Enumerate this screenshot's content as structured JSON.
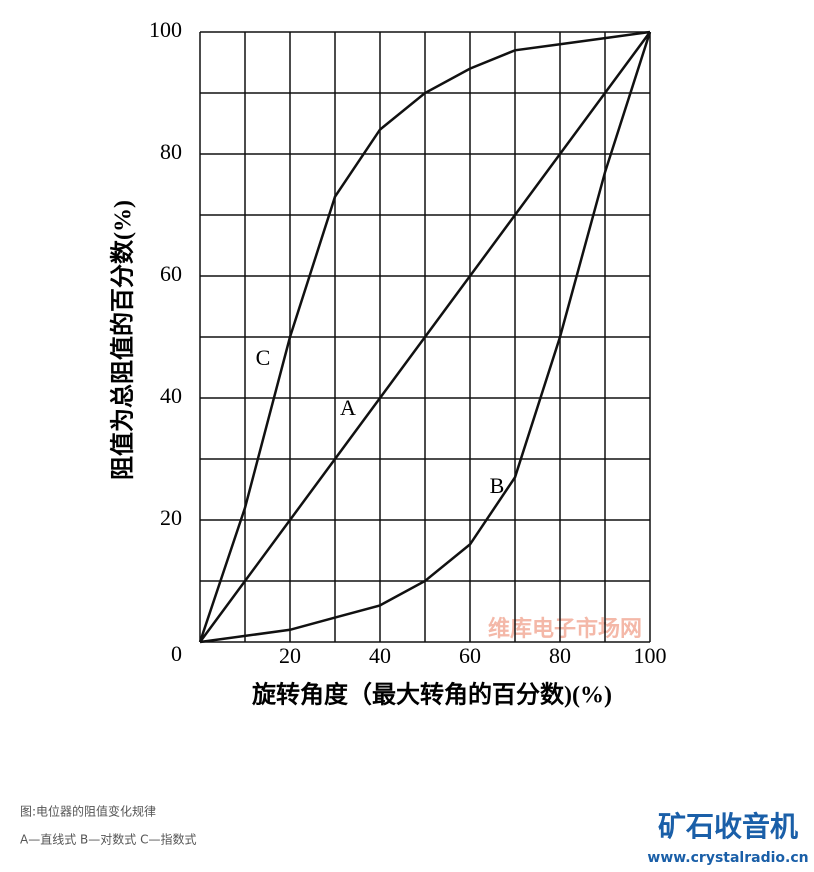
{
  "chart_data": {
    "type": "line",
    "x_label": "旋转角度（最大转角的百分数)(%)",
    "y_label": "阻值为总阻值的百分数(%)",
    "xlim": [
      0,
      100
    ],
    "ylim": [
      0,
      100
    ],
    "xticks": [
      20,
      40,
      60,
      80,
      100
    ],
    "yticks": [
      0,
      20,
      40,
      60,
      80,
      100
    ],
    "xgrid": [
      0,
      10,
      20,
      30,
      40,
      50,
      60,
      70,
      80,
      90,
      100
    ],
    "ygrid": [
      0,
      10,
      20,
      30,
      40,
      50,
      60,
      70,
      80,
      90,
      100
    ],
    "x": [
      0,
      10,
      20,
      30,
      40,
      50,
      60,
      70,
      80,
      90,
      100
    ],
    "series": [
      {
        "name": "A",
        "color": "#111111",
        "values": [
          0,
          10,
          20,
          30,
          40,
          50,
          60,
          70,
          80,
          90,
          100
        ]
      },
      {
        "name": "B",
        "color": "#111111",
        "values": [
          0,
          1,
          2,
          4,
          6,
          10,
          16,
          27,
          50,
          77,
          100
        ]
      },
      {
        "name": "C",
        "color": "#111111",
        "values": [
          0,
          22,
          50,
          73,
          84,
          90,
          94,
          97,
          98,
          99,
          100
        ]
      }
    ]
  },
  "caption": [
    "图:电位器的阻值变化规律",
    "A—直线式 B—对数式 C—指数式"
  ],
  "watermarks": [
    "维库电子市场网",
    "矿石收音机",
    "www.crystalradio.cn"
  ]
}
